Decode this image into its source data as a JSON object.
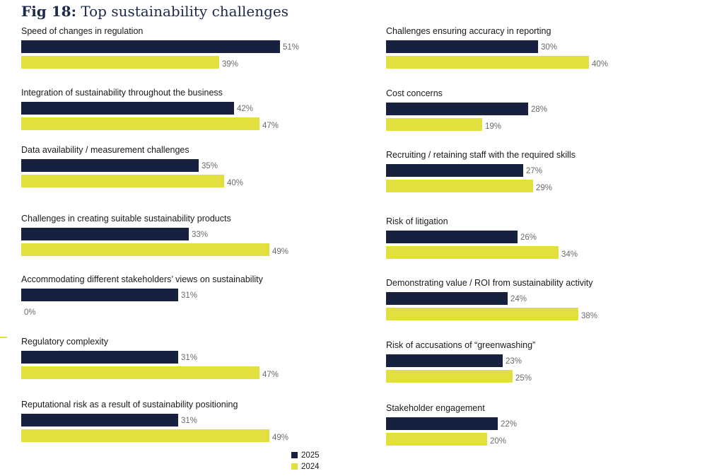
{
  "header": {
    "title_prefix": "Fig 18:",
    "title_text": "Top sustainability challenges"
  },
  "colors": {
    "series_2025": "#17213f",
    "series_2024": "#e1e03e",
    "accent": "#e1e03e"
  },
  "chart_data": {
    "type": "bar",
    "orientation": "horizontal",
    "title": "Fig 18: Top sustainability challenges",
    "value_unit": "%",
    "xlim": [
      0,
      100
    ],
    "grid": false,
    "legend_position": "bottom",
    "legend": [
      "2025",
      "2024"
    ],
    "categories": [
      "Speed of changes in regulation",
      "Integration of sustainability throughout the business",
      "Data availability / measurement challenges",
      "Challenges in creating suitable sustainability products",
      "Accommodating different stakeholders’ views on sustainability",
      "Regulatory complexity",
      "Reputational risk as a result of sustainability positioning",
      "Challenges ensuring accuracy in reporting",
      "Cost concerns",
      "Recruiting / retaining staff with the required skills",
      "Risk of litigation",
      "Demonstrating value / ROI from sustainability activity",
      "Risk of accusations of “greenwashing”",
      "Stakeholder engagement"
    ],
    "series": [
      {
        "name": "2025",
        "values": [
          51,
          42,
          35,
          33,
          31,
          31,
          31,
          30,
          28,
          27,
          26,
          24,
          23,
          22
        ]
      },
      {
        "name": "2024",
        "values": [
          39,
          47,
          40,
          49,
          0,
          47,
          49,
          40,
          19,
          29,
          34,
          38,
          25,
          20
        ]
      }
    ]
  }
}
